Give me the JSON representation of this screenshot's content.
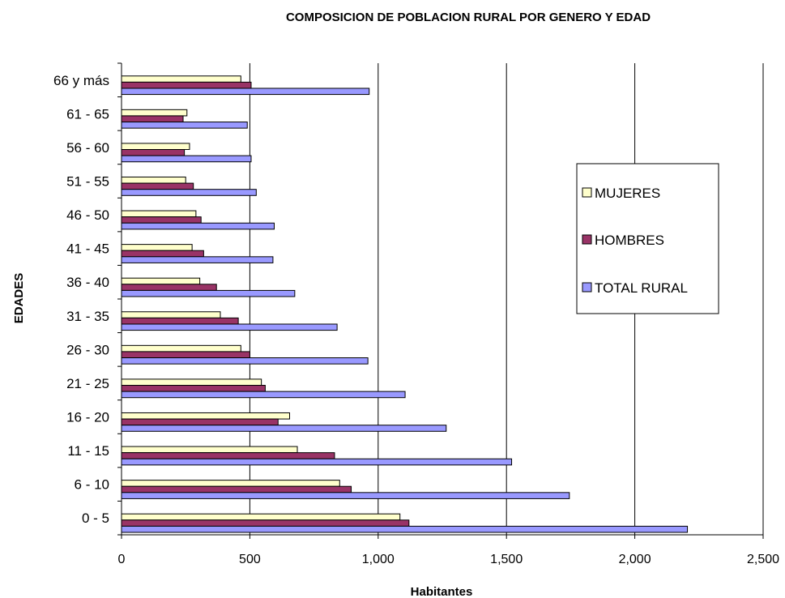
{
  "chart_data": {
    "type": "bar",
    "orientation": "horizontal",
    "title": "COMPOSICION DE POBLACION RURAL POR GENERO Y EDAD",
    "xlabel": "Habitantes",
    "ylabel": "EDADES",
    "xlim": [
      0,
      2500
    ],
    "x_ticks": [
      "0",
      "500",
      "1,000",
      "1,500",
      "2,000",
      "2,500"
    ],
    "x_tick_values": [
      0,
      500,
      1000,
      1500,
      2000,
      2500
    ],
    "grid": "vertical major gridlines",
    "legend_position": "right",
    "categories": [
      "0 - 5",
      "6 - 10",
      "11 - 15",
      "16 - 20",
      "21 - 25",
      "26 - 30",
      "31 - 35",
      "36 - 40",
      "41 - 45",
      "46 - 50",
      "51 - 55",
      "56 - 60",
      "61 - 65",
      "66  y más"
    ],
    "series": [
      {
        "name": "MUJERES",
        "color": "#FFFFCC",
        "values": [
          1085,
          850,
          685,
          655,
          545,
          465,
          385,
          305,
          275,
          290,
          250,
          265,
          255,
          465
        ]
      },
      {
        "name": "HOMBRES",
        "color": "#993366",
        "values": [
          1120,
          895,
          830,
          610,
          560,
          500,
          455,
          370,
          320,
          310,
          280,
          245,
          240,
          505
        ]
      },
      {
        "name": "TOTAL RURAL",
        "color": "#9999FF",
        "values": [
          2205,
          1745,
          1520,
          1265,
          1105,
          960,
          840,
          675,
          590,
          595,
          525,
          505,
          490,
          965
        ]
      }
    ]
  }
}
